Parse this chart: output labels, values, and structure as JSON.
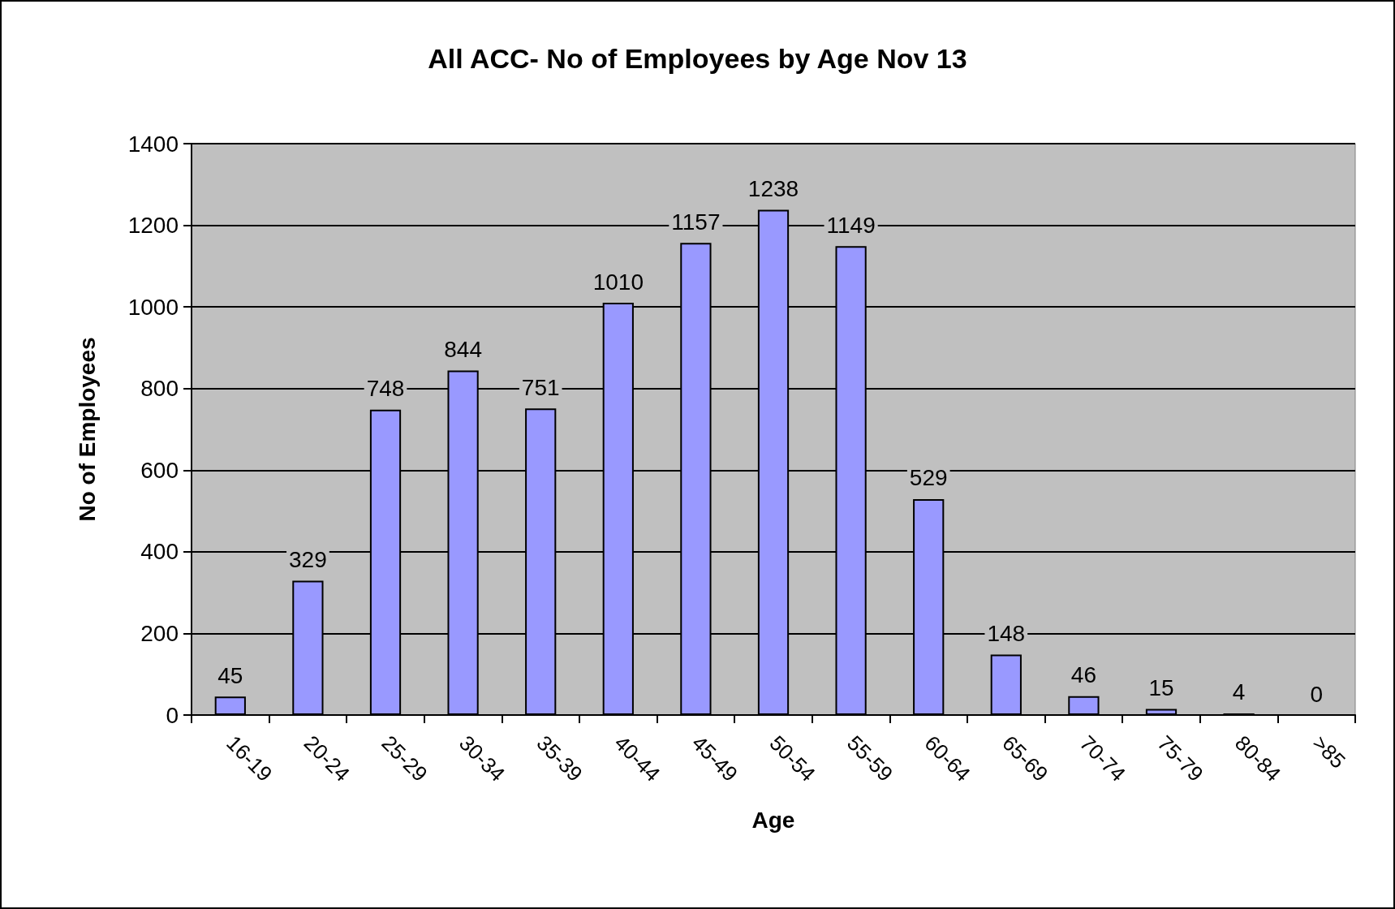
{
  "chart_data": {
    "type": "bar",
    "title": "All ACC- No of Employees by Age Nov 13",
    "xlabel": "Age",
    "ylabel": "No of Employees",
    "categories": [
      "16-19",
      "20-24",
      "25-29",
      "30-34",
      "35-39",
      "40-44",
      "45-49",
      "50-54",
      "55-59",
      "60-64",
      "65-69",
      "70-74",
      "75-79",
      "80-84",
      ">85"
    ],
    "values": [
      45,
      329,
      748,
      844,
      751,
      1010,
      1157,
      1238,
      1149,
      529,
      148,
      46,
      15,
      4,
      0
    ],
    "color": "#9999ff",
    "ylim": [
      0,
      1400
    ],
    "yticks": [
      0,
      200,
      400,
      600,
      800,
      1000,
      1200,
      1400
    ],
    "grid": "y",
    "data_labels": true
  }
}
